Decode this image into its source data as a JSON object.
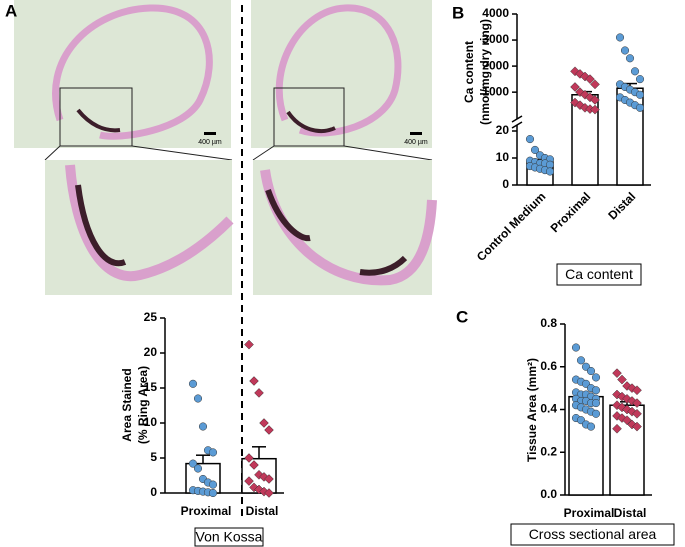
{
  "micrographs": {
    "scale_bars": [
      "400 µm",
      "400 µm"
    ]
  },
  "chart_data": [
    {
      "type": "bar",
      "panel_label": "A",
      "caption": "Von Kossa",
      "ylabel": [
        "Area Stained",
        "(% Ring Area)"
      ],
      "categories": [
        "Proximal",
        "Distal"
      ],
      "values": [
        4.2,
        4.9
      ],
      "errors": [
        1.2,
        1.7
      ],
      "points": [
        [
          15.6,
          13.5,
          9.5,
          6.1,
          5.8,
          4.2,
          3.5,
          2.0,
          1.5,
          1.2,
          0.4,
          0.3,
          0.2,
          0.1,
          0.0
        ],
        [
          21.2,
          16.0,
          14.3,
          10.0,
          9.0,
          5.0,
          4.0,
          2.6,
          2.3,
          2.0,
          1.7,
          0.8,
          0.5,
          0.2,
          0.0
        ]
      ],
      "point_colors": [
        "#5b9bd5",
        "#c0395a"
      ],
      "markers": [
        "circle",
        "diamond"
      ],
      "ylim": [
        0,
        25
      ],
      "yticks": [
        0,
        5,
        10,
        15,
        20,
        25
      ]
    },
    {
      "type": "bar",
      "panel_label": "B",
      "caption": "Ca content",
      "ylabel": [
        "Ca content",
        "(nmol/mg dry ring)"
      ],
      "categories": [
        "Control Medium",
        "Proximal",
        "Distal"
      ],
      "values": [
        8.5,
        900,
        1150
      ],
      "errors": [
        0.9,
        120,
        180
      ],
      "points": [
        [
          17,
          13,
          11,
          10,
          9.5,
          9,
          8.5,
          8,
          8,
          7.5,
          7,
          6.5,
          6,
          5.5,
          5
        ],
        [
          1800,
          1700,
          1600,
          1500,
          1300,
          1200,
          1000,
          900,
          800,
          700,
          600,
          500,
          400,
          350,
          330
        ],
        [
          3100,
          2600,
          2300,
          1800,
          1500,
          1300,
          1200,
          1100,
          1000,
          900,
          800,
          700,
          600,
          500,
          400
        ]
      ],
      "point_colors": [
        "#5b9bd5",
        "#c0395a",
        "#5b9bd5"
      ],
      "markers": [
        "circle",
        "diamond",
        "circle"
      ],
      "ylim": [
        0,
        4000
      ],
      "axis_break": [
        20,
        200
      ],
      "yticks": [
        0,
        10,
        20,
        1000,
        2000,
        3000,
        4000
      ]
    },
    {
      "type": "bar",
      "panel_label": "C",
      "caption": "Cross sectional area",
      "ylabel": [
        "Tissue Area (mm²)"
      ],
      "categories": [
        "Proximal",
        "Distal"
      ],
      "values": [
        0.46,
        0.42
      ],
      "errors": [
        0.015,
        0.016
      ],
      "points": [
        [
          0.69,
          0.63,
          0.6,
          0.58,
          0.55,
          0.54,
          0.53,
          0.52,
          0.5,
          0.49,
          0.48,
          0.47,
          0.47,
          0.46,
          0.45,
          0.45,
          0.44,
          0.44,
          0.43,
          0.43,
          0.42,
          0.41,
          0.4,
          0.39,
          0.38,
          0.36,
          0.35,
          0.33,
          0.32
        ],
        [
          0.57,
          0.54,
          0.51,
          0.5,
          0.49,
          0.47,
          0.46,
          0.45,
          0.44,
          0.43,
          0.42,
          0.41,
          0.4,
          0.39,
          0.38,
          0.37,
          0.36,
          0.35,
          0.33,
          0.32,
          0.31
        ]
      ],
      "point_colors": [
        "#5b9bd5",
        "#c0395a"
      ],
      "markers": [
        "circle",
        "diamond"
      ],
      "ylim": [
        0,
        0.8
      ],
      "yticks": [
        {
          "value": 0,
          "label": "0.0"
        },
        0.2,
        0.4,
        0.6,
        0.8
      ]
    }
  ]
}
